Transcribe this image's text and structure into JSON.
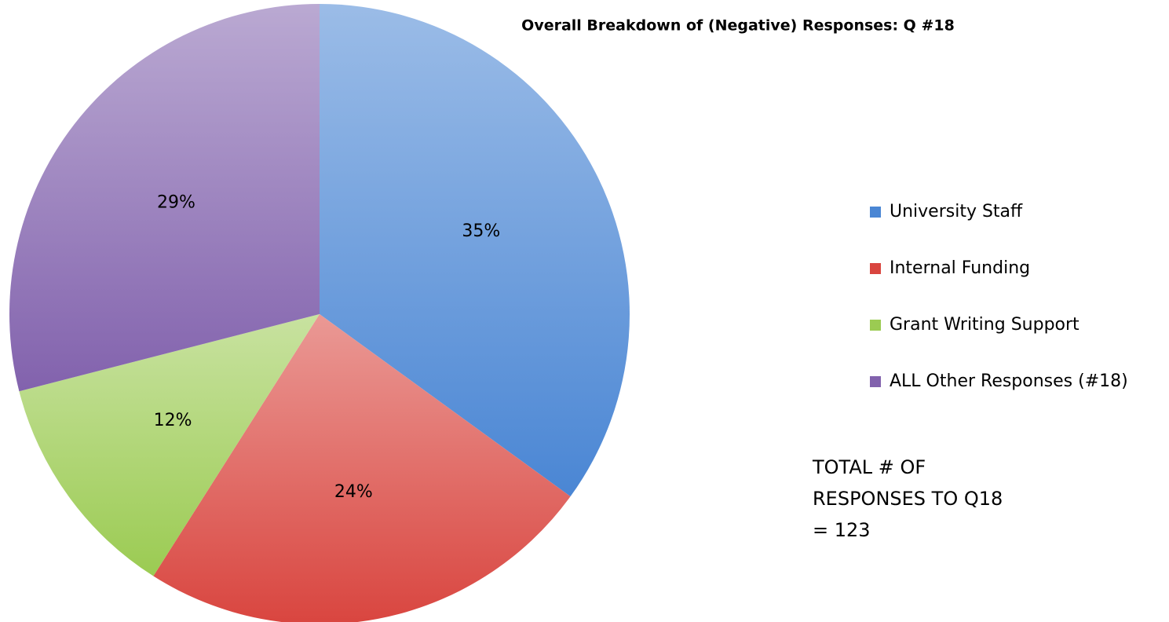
{
  "chart_data": {
    "type": "pie",
    "title": "Overall Breakdown of (Negative) Responses: Q #18",
    "categories": [
      "University Staff",
      "Internal Funding",
      "Grant Writing Support",
      "ALL Other Responses (#18)"
    ],
    "values": [
      35,
      24,
      12,
      29
    ],
    "value_labels": [
      "35%",
      "24%",
      "12%",
      "29%"
    ],
    "colors": [
      "#4a86d4",
      "#d9453f",
      "#9bcb52",
      "#8262ad"
    ],
    "legend": "right",
    "annotation": [
      "TOTAL # OF",
      "RESPONSES TO Q18",
      "= 123"
    ]
  }
}
